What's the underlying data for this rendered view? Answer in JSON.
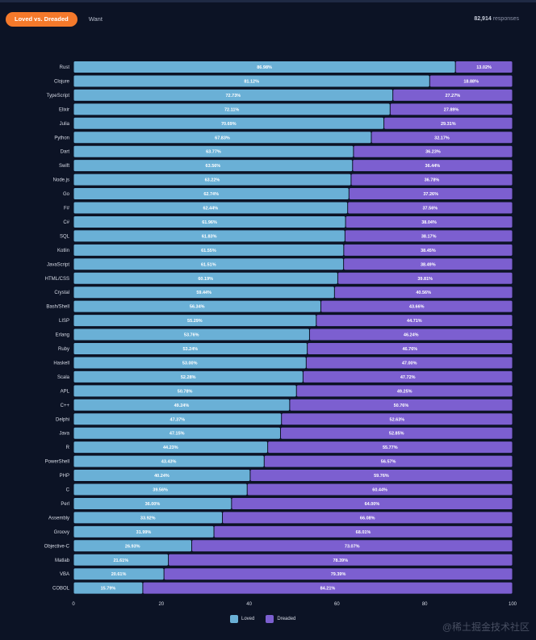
{
  "tabs": [
    {
      "label": "Loved vs. Dreaded",
      "active": true
    },
    {
      "label": "Want",
      "active": false
    }
  ],
  "responses": {
    "count": "82,914",
    "suffix": "responses"
  },
  "legend": [
    {
      "label": "Loved",
      "color": "#6ab0d6"
    },
    {
      "label": "Dreaded",
      "color": "#7c5fd0"
    }
  ],
  "watermark": "@稀土掘金技术社区",
  "chart_data": {
    "type": "bar",
    "orientation": "horizontal",
    "stacked": true,
    "xlim": [
      0,
      100
    ],
    "xticks": [
      0,
      20,
      40,
      60,
      80,
      100
    ],
    "legend_position": "bottom-center",
    "grid": false,
    "categories": [
      "Rust",
      "Clojure",
      "TypeScript",
      "Elixir",
      "Julia",
      "Python",
      "Dart",
      "Swift",
      "Node.js",
      "Go",
      "F#",
      "C#",
      "SQL",
      "Kotlin",
      "JavaScript",
      "HTML/CSS",
      "Crystal",
      "Bash/Shell",
      "LISP",
      "Erlang",
      "Ruby",
      "Haskell",
      "Scala",
      "APL",
      "C++",
      "Delphi",
      "Java",
      "R",
      "PowerShell",
      "PHP",
      "C",
      "Perl",
      "Assembly",
      "Groovy",
      "Objective-C",
      "Matlab",
      "VBA",
      "COBOL"
    ],
    "series": [
      {
        "name": "Loved",
        "values": [
          86.98,
          81.12,
          72.73,
          72.11,
          70.69,
          67.83,
          63.77,
          63.56,
          63.22,
          62.74,
          62.44,
          61.96,
          61.83,
          61.55,
          61.51,
          60.19,
          59.44,
          56.34,
          55.29,
          53.76,
          53.24,
          53.0,
          52.28,
          50.78,
          49.24,
          47.37,
          47.15,
          44.23,
          43.43,
          40.24,
          39.56,
          36.0,
          33.92,
          31.99,
          26.93,
          21.61,
          20.61,
          15.79
        ],
        "labels": [
          "86.98%",
          "81.12%",
          "72.73%",
          "72.11%",
          "70.69%",
          "67.83%",
          "63.77%",
          "63.56%",
          "63.22%",
          "62.74%",
          "62.44%",
          "61.96%",
          "61.83%",
          "61.55%",
          "61.51%",
          "60.19%",
          "59.44%",
          "56.34%",
          "55.29%",
          "53.76%",
          "53.24%",
          "53.00%",
          "52.28%",
          "50.78%",
          "49.24%",
          "47.37%",
          "47.15%",
          "44.23%",
          "43.43%",
          "40.24%",
          "39.56%",
          "36.00%",
          "33.92%",
          "31.99%",
          "26.93%",
          "21.61%",
          "20.61%",
          "15.79%"
        ]
      },
      {
        "name": "Dreaded",
        "values": [
          13.02,
          18.88,
          27.27,
          27.89,
          29.31,
          32.17,
          36.23,
          36.44,
          36.78,
          37.26,
          37.56,
          38.04,
          38.17,
          38.45,
          38.49,
          39.81,
          40.56,
          43.66,
          44.71,
          46.24,
          46.76,
          47.0,
          47.72,
          49.25,
          50.76,
          52.63,
          52.85,
          55.77,
          56.57,
          59.76,
          60.44,
          64.0,
          66.08,
          68.01,
          73.07,
          78.39,
          79.39,
          84.21
        ],
        "labels": [
          "13.02%",
          "18.88%",
          "27.27%",
          "27.89%",
          "29.31%",
          "32.17%",
          "36.23%",
          "36.44%",
          "36.78%",
          "37.26%",
          "37.56%",
          "38.04%",
          "38.17%",
          "38.45%",
          "38.49%",
          "39.81%",
          "40.56%",
          "43.66%",
          "44.71%",
          "46.24%",
          "46.76%",
          "47.00%",
          "47.72%",
          "49.25%",
          "50.76%",
          "52.63%",
          "52.85%",
          "55.77%",
          "56.57%",
          "59.76%",
          "60.44%",
          "64.00%",
          "66.08%",
          "68.01%",
          "73.07%",
          "78.39%",
          "79.39%",
          "84.21%"
        ]
      }
    ]
  }
}
